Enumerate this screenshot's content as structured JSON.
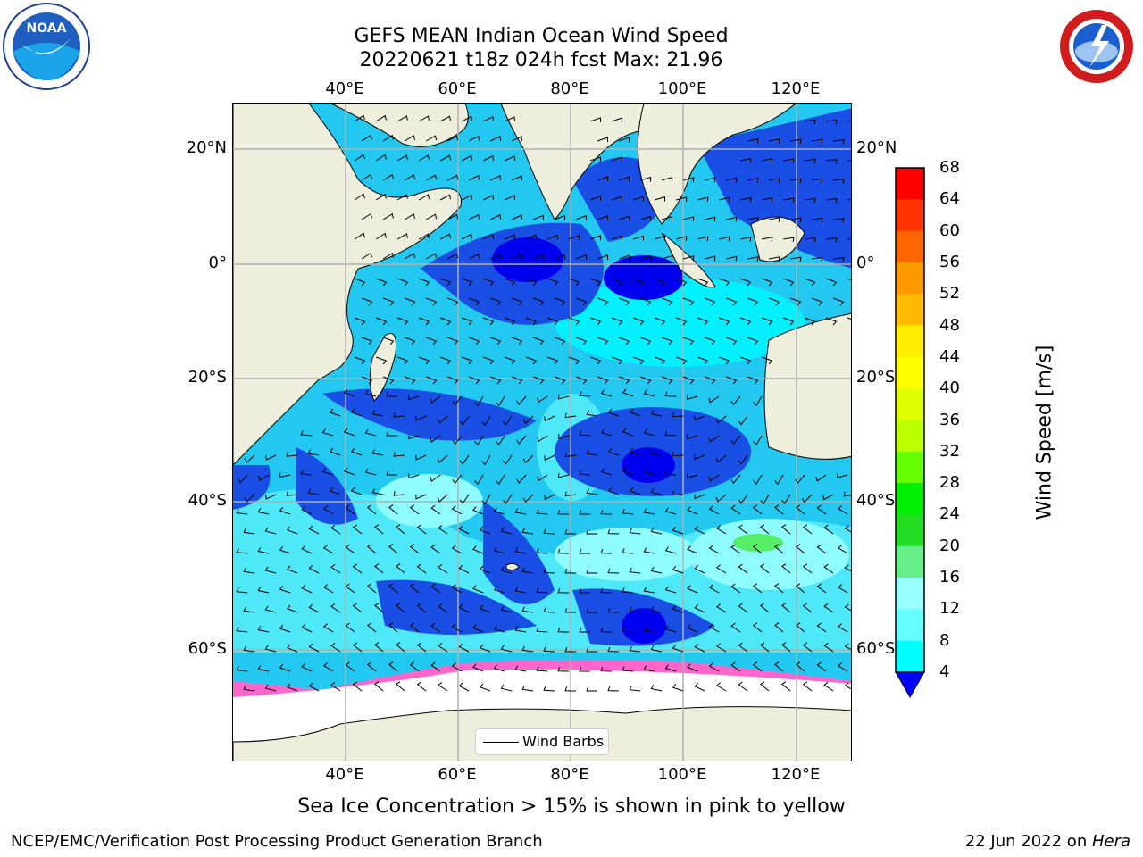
{
  "header": {
    "title_line1": "GEFS MEAN Indian Ocean Wind Speed",
    "title_line2": "20220621 t18z 024h fcst   Max: 21.96"
  },
  "logos": {
    "left": "noara-logo",
    "right": "nws-logo"
  },
  "map": {
    "lon_ticks": [
      "40°E",
      "60°E",
      "80°E",
      "100°E",
      "120°E"
    ],
    "lat_ticks": [
      "20°N",
      "0°",
      "20°S",
      "40°S",
      "60°S"
    ],
    "legend": {
      "label": "Wind Barbs"
    },
    "colors": {
      "land": "#eeeedd",
      "ice": "#ffffff",
      "grid": "#b0b0b0"
    }
  },
  "colorbar": {
    "label": "Wind Speed [m/s]",
    "ticks": [
      "68",
      "64",
      "60",
      "56",
      "52",
      "48",
      "44",
      "40",
      "36",
      "32",
      "28",
      "24",
      "20",
      "16",
      "12",
      "8",
      "4"
    ],
    "colors": [
      "#ff0000",
      "#ff3300",
      "#ff6600",
      "#ff9900",
      "#ffbb00",
      "#ffee00",
      "#ffff00",
      "#ddff00",
      "#bbff00",
      "#66ff00",
      "#00ee00",
      "#22dd22",
      "#66ee88",
      "#99ffff",
      "#66ffff",
      "#00ffff",
      "#0088ff"
    ],
    "extend_color": "#0000ff"
  },
  "footer": {
    "note": "Sea Ice Concentration > 15% is shown in pink to yellow",
    "left": "NCEP/EMC/Verification Post Processing Product Generation Branch",
    "right_date": "22 Jun 2022 on ",
    "right_host": "Hera"
  }
}
